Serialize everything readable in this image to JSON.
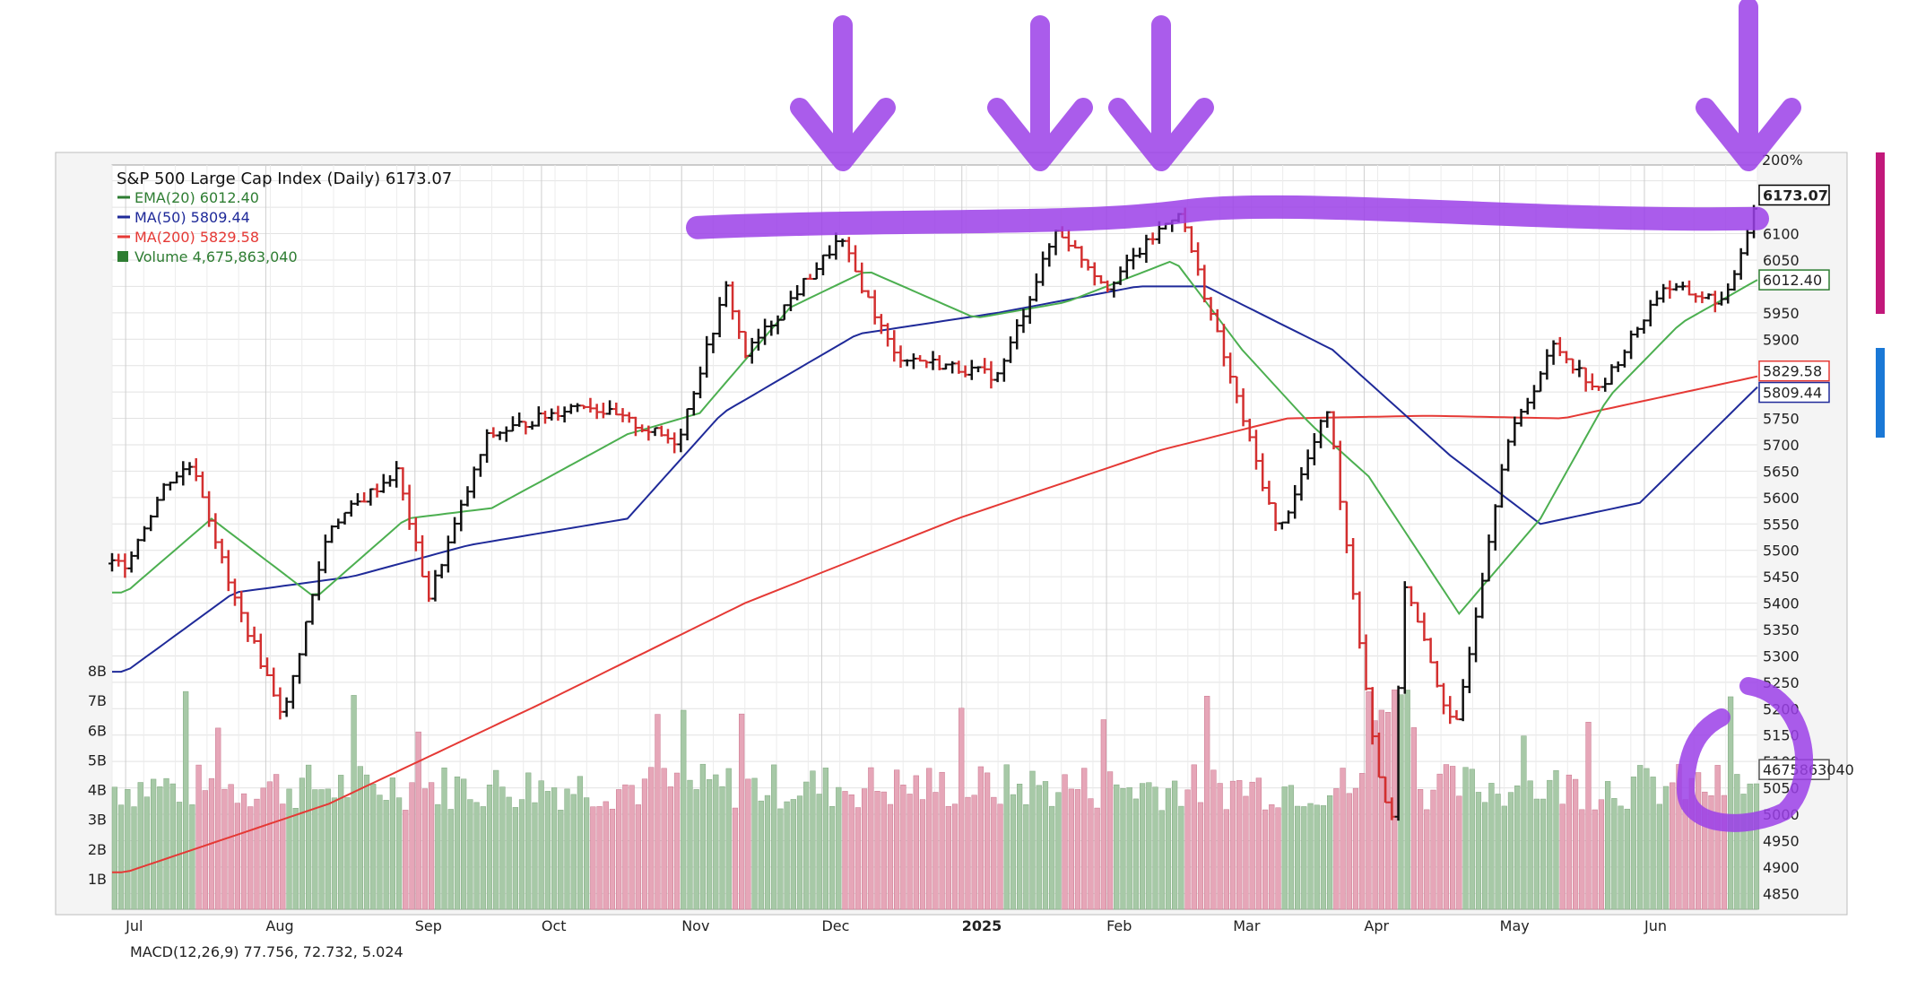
{
  "chart_data": {
    "type": "line",
    "title": "S&P 500 Large Cap Index (Daily) 6173.07",
    "xlabel": "",
    "ylabel": "",
    "legend": [
      {
        "label": "EMA(20) 6012.40",
        "color": "#2e7d32"
      },
      {
        "label": "MA(50) 5809.44",
        "color": "#1f2a99"
      },
      {
        "label": "MA(200) 5829.58",
        "color": "#e53935"
      },
      {
        "label": "Volume 4,675,863,040",
        "color": "#2e7d32"
      }
    ],
    "legend_position": "top-left",
    "grid": true,
    "x_tick_labels": [
      "Jul",
      "Aug",
      "Sep",
      "Oct",
      "Nov",
      "Dec",
      "2025",
      "Feb",
      "Mar",
      "Apr",
      "May",
      "Jun"
    ],
    "x_tick_dates": [
      "2024-07-01",
      "2024-08-01",
      "2024-09-03",
      "2024-10-01",
      "2024-11-01",
      "2024-12-02",
      "2025-01-02",
      "2025-02-03",
      "2025-03-03",
      "2025-04-01",
      "2025-05-01",
      "2025-06-02"
    ],
    "x_range": [
      "2024-06-28",
      "2025-06-27"
    ],
    "ylim": [
      4820,
      6230
    ],
    "y_ticks": [
      4850,
      4900,
      4950,
      5000,
      5050,
      5100,
      5150,
      5200,
      5250,
      5300,
      5350,
      5400,
      5450,
      5500,
      5550,
      5600,
      5650,
      5700,
      5750,
      5800,
      5850,
      5900,
      5950,
      6000,
      6050,
      6100,
      6150,
      6200
    ],
    "y_tick_labels_visible": [
      "4850",
      "4900",
      "4950",
      "5000",
      "5050",
      "5100",
      "5150",
      "5200",
      "5250",
      "5300",
      "5350",
      "5400",
      "5450",
      "5500",
      "5550",
      "5600",
      "5650",
      "5700",
      "5750",
      "5900",
      "5950",
      "6050",
      "6100"
    ],
    "right_badges": [
      {
        "label": "6173.07",
        "value": 6173.07,
        "border": "#000000"
      },
      {
        "label": "6012.40",
        "value": 6012.4,
        "border": "#2e7d32"
      },
      {
        "label": "5829.58",
        "value": 5829.58,
        "border": "#e53935"
      },
      {
        "label": "5809.44",
        "value": 5809.44,
        "border": "#1f2a99"
      },
      {
        "label": "4675863040",
        "value": 4675863040,
        "border": "#555555"
      }
    ],
    "top_right_label": "200%",
    "macd_label": "MACD(12,26,9) 77.756, 72.732, 5.024",
    "volume_axis": {
      "labels": [
        "1B",
        "2B",
        "3B",
        "4B",
        "5B",
        "6B",
        "7B",
        "8B"
      ],
      "values": [
        1,
        2,
        3,
        4,
        5,
        6,
        7,
        8
      ],
      "unit": "billion"
    },
    "price_series": {
      "name": "S&P 500 close",
      "x": [
        "2024-07-01",
        "2024-07-10",
        "2024-07-16",
        "2024-07-24",
        "2024-08-05",
        "2024-08-15",
        "2024-08-30",
        "2024-09-06",
        "2024-09-19",
        "2024-10-10",
        "2024-10-31",
        "2024-11-11",
        "2024-11-15",
        "2024-12-06",
        "2024-12-18",
        "2025-01-10",
        "2025-01-23",
        "2025-02-03",
        "2025-02-19",
        "2025-03-13",
        "2025-03-24",
        "2025-04-04",
        "2025-04-08",
        "2025-04-09",
        "2025-04-21",
        "2025-05-02",
        "2025-05-13",
        "2025-05-23",
        "2025-06-06",
        "2025-06-20",
        "2025-06-27"
      ],
      "y": [
        5475,
        5630,
        5665,
        5430,
        5185,
        5545,
        5650,
        5410,
        5715,
        5780,
        5705,
        6000,
        5870,
        6090,
        5870,
        5830,
        6110,
        6000,
        6145,
        5530,
        5770,
        5080,
        4960,
        5460,
        5150,
        5690,
        5890,
        5800,
        6000,
        5970,
        6173
      ]
    },
    "ema20_series": {
      "name": "EMA(20)",
      "x": [
        "2024-07-01",
        "2024-07-20",
        "2024-08-12",
        "2024-09-01",
        "2024-09-20",
        "2024-10-20",
        "2024-11-05",
        "2024-11-25",
        "2024-12-12",
        "2025-01-05",
        "2025-01-25",
        "2025-02-18",
        "2025-03-05",
        "2025-03-20",
        "2025-04-02",
        "2025-04-22",
        "2025-05-10",
        "2025-05-25",
        "2025-06-10",
        "2025-06-27"
      ],
      "y": [
        5420,
        5560,
        5410,
        5560,
        5580,
        5720,
        5760,
        5960,
        6030,
        5940,
        5970,
        6050,
        5880,
        5740,
        5640,
        5380,
        5560,
        5790,
        5930,
        6012.4
      ]
    },
    "ma50_series": {
      "name": "MA(50)",
      "x": [
        "2024-07-01",
        "2024-07-25",
        "2024-08-20",
        "2024-09-15",
        "2024-10-20",
        "2024-11-10",
        "2024-12-10",
        "2025-01-10",
        "2025-02-10",
        "2025-02-25",
        "2025-03-25",
        "2025-04-20",
        "2025-05-10",
        "2025-06-01",
        "2025-06-27"
      ],
      "y": [
        5270,
        5420,
        5450,
        5510,
        5560,
        5760,
        5910,
        5950,
        6000,
        6000,
        5880,
        5680,
        5550,
        5590,
        5809.44
      ]
    },
    "ma200_series": {
      "name": "MA(200)",
      "x": [
        "2024-07-01",
        "2024-08-15",
        "2024-10-01",
        "2024-11-15",
        "2025-01-01",
        "2025-02-15",
        "2025-03-15",
        "2025-04-15",
        "2025-05-15",
        "2025-06-27"
      ],
      "y": [
        4890,
        5020,
        5210,
        5400,
        5560,
        5690,
        5750,
        5755,
        5750,
        5829.58
      ]
    }
  },
  "annotations": {
    "arrow_color": "#9b3fe8",
    "arrow_count": 4,
    "resistance_level": 6125,
    "circle_note": "around latest volume bar"
  }
}
